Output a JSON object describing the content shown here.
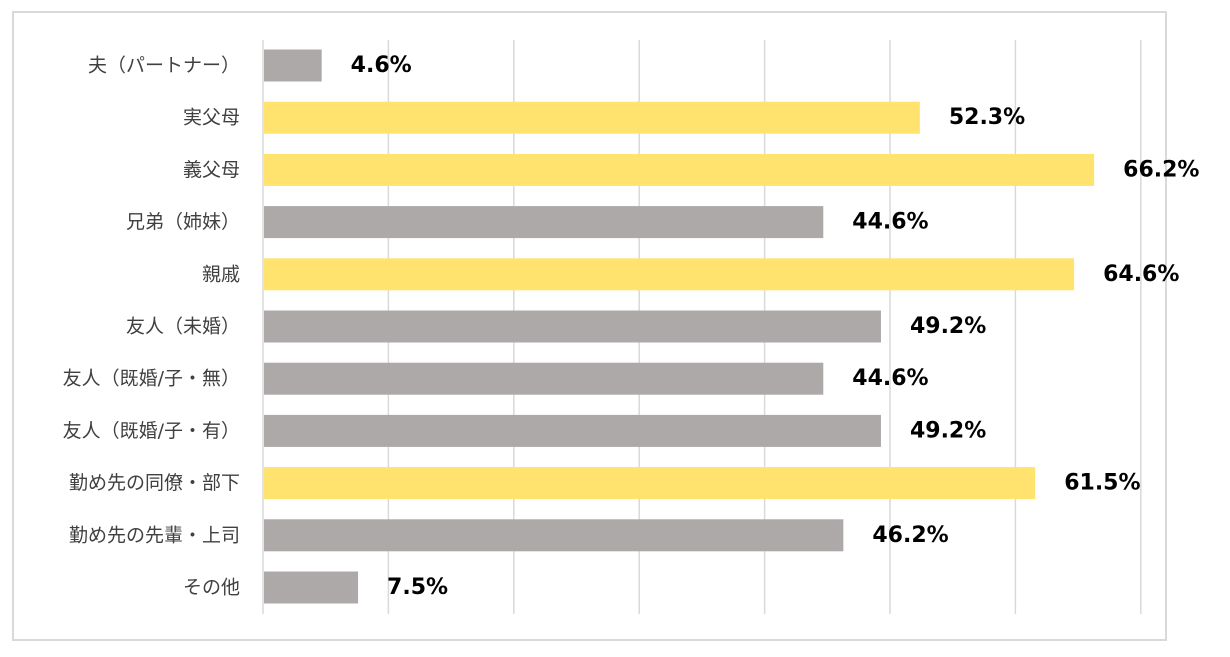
{
  "chart_data": {
    "type": "bar",
    "orientation": "horizontal",
    "categories": [
      "夫（パートナー）",
      "実父母",
      "義父母",
      "兄弟（姉妹）",
      "親戚",
      "友人（未婚）",
      "友人（既婚/子・無）",
      "友人（既婚/子・有）",
      "勤め先の同僚・部下",
      "勤め先の先輩・上司",
      "その他"
    ],
    "values": [
      4.6,
      52.3,
      66.2,
      44.6,
      64.6,
      49.2,
      44.6,
      49.2,
      61.5,
      46.2,
      7.5
    ],
    "value_labels": [
      "4.6%",
      "52.3%",
      "66.2%",
      "44.6%",
      "64.6%",
      "49.2%",
      "44.6%",
      "49.2%",
      "61.5%",
      "46.2%",
      "7.5%"
    ],
    "highlight": [
      false,
      true,
      true,
      false,
      true,
      false,
      false,
      false,
      true,
      false,
      false
    ],
    "xlim": [
      0,
      70
    ],
    "grid": true,
    "title": "",
    "xlabel": "",
    "ylabel": "",
    "colors": {
      "highlight": "#ffe36e",
      "normal": "#ada9a9",
      "grid": "#d9d9d9",
      "frame": "#d9d9d9"
    }
  }
}
